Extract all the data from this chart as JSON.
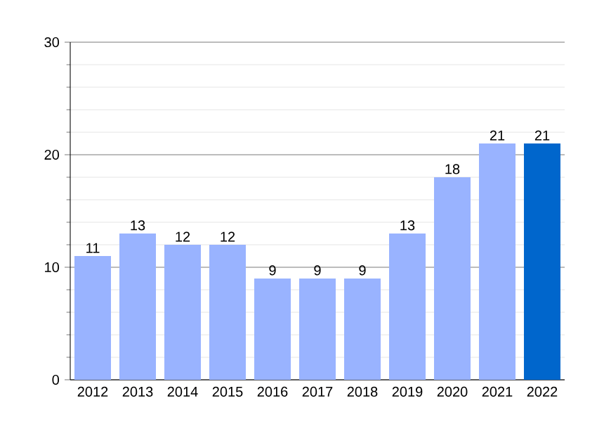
{
  "chart_data": {
    "type": "bar",
    "categories": [
      "2012",
      "2013",
      "2014",
      "2015",
      "2016",
      "2017",
      "2018",
      "2019",
      "2020",
      "2021",
      "2022"
    ],
    "values": [
      11,
      13,
      12,
      12,
      9,
      9,
      9,
      13,
      18,
      21,
      21
    ],
    "colors": [
      "#99b3ff",
      "#99b3ff",
      "#99b3ff",
      "#99b3ff",
      "#99b3ff",
      "#99b3ff",
      "#99b3ff",
      "#99b3ff",
      "#99b3ff",
      "#99b3ff",
      "#0066cc"
    ],
    "ylim": [
      0,
      30
    ],
    "yticks": [
      0,
      10,
      20,
      30
    ],
    "grid": "y",
    "data_labels": true
  }
}
